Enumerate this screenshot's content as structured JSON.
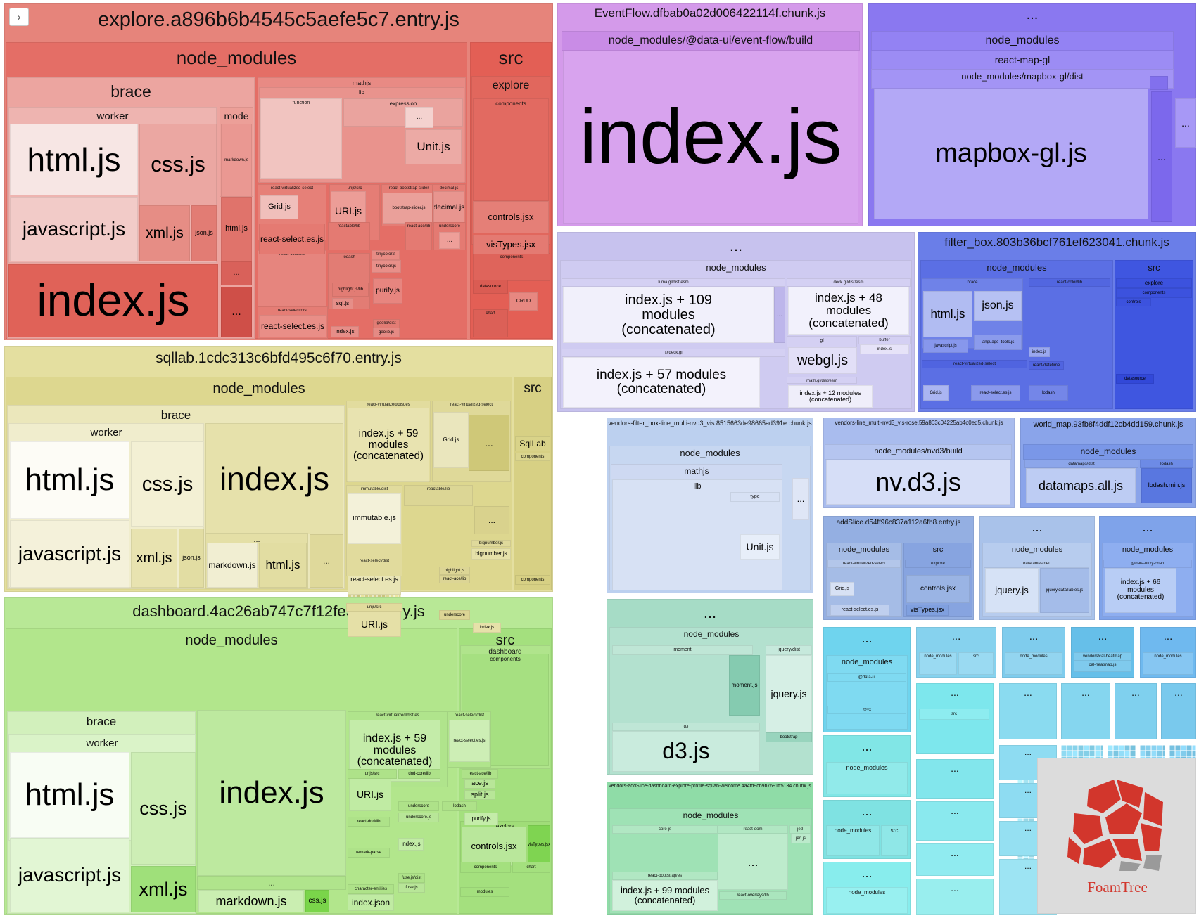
{
  "toggle": {
    "icon": "chevron-right-icon",
    "glyph": "›"
  },
  "colors": {
    "explore": "#e06e64",
    "sqllab": "#d6d17f",
    "dashboard": "#9fe07a",
    "eventflow": "#c98ce6",
    "mapbox": "#8b78f0",
    "luma": "#c7c2ee",
    "filter_box": "#3f56e0",
    "vendors_blue": "#a9c3ea",
    "nvd3": "#9db3ea",
    "world_map": "#7f9ee8",
    "d3_green": "#9ad7c0",
    "teal": "#86e6e0",
    "cyan": "#7fd6f0"
  },
  "groups": [
    {
      "id": "explore",
      "name": "explore.a896b6b4545c5aefe5c7.entry.js"
    },
    {
      "id": "explore-nm",
      "name": "node_modules"
    },
    {
      "id": "explore-brace",
      "name": "brace"
    },
    {
      "id": "explore-worker",
      "name": "worker"
    },
    {
      "id": "explore-html",
      "name": "html.js"
    },
    {
      "id": "explore-css",
      "name": "css.js"
    },
    {
      "id": "explore-javascript",
      "name": "javascript.js"
    },
    {
      "id": "explore-xml",
      "name": "xml.js"
    },
    {
      "id": "explore-json",
      "name": "json.js"
    },
    {
      "id": "explore-mode",
      "name": "mode"
    },
    {
      "id": "explore-markdown",
      "name": "markdown.js"
    },
    {
      "id": "explore-mode-html",
      "name": "html.js"
    },
    {
      "id": "explore-mode-dots1",
      "name": "..."
    },
    {
      "id": "explore-mode-dots2",
      "name": "..."
    },
    {
      "id": "explore-index",
      "name": "index.js"
    },
    {
      "id": "explore-mathjs",
      "name": "mathjs"
    },
    {
      "id": "explore-lib",
      "name": "lib"
    },
    {
      "id": "explore-function",
      "name": "function"
    },
    {
      "id": "explore-expression",
      "name": "expression"
    },
    {
      "id": "explore-dots3",
      "name": "..."
    },
    {
      "id": "explore-unit",
      "name": "Unit.js"
    },
    {
      "id": "explore-rvs",
      "name": "react-virtualized-select"
    },
    {
      "id": "explore-grid",
      "name": "Grid.js"
    },
    {
      "id": "explore-urijs",
      "name": "urijs/src"
    },
    {
      "id": "explore-uri",
      "name": "URI.js"
    },
    {
      "id": "explore-rbs",
      "name": "react-bootstrap-slider"
    },
    {
      "id": "explore-bss",
      "name": "bootstrap-slider.js"
    },
    {
      "id": "explore-decimaljs",
      "name": "decimal.js"
    },
    {
      "id": "explore-decimal",
      "name": "decimal.js"
    },
    {
      "id": "explore-rselect",
      "name": "react-select.es.js"
    },
    {
      "id": "explore-reactable",
      "name": "reactable/lib"
    },
    {
      "id": "explore-raceliib",
      "name": "react-ace/lib"
    },
    {
      "id": "explore-underscore",
      "name": "underscore"
    },
    {
      "id": "explore-dots4",
      "name": "..."
    },
    {
      "id": "explore-colorlib",
      "name": "react-color/lib"
    },
    {
      "id": "explore-lodash",
      "name": "lodash"
    },
    {
      "id": "explore-tinycolor2",
      "name": "tinycolor2"
    },
    {
      "id": "explore-tinycolor",
      "name": "tinycolor.js"
    },
    {
      "id": "explore-highlight",
      "name": "highlight.js/lib"
    },
    {
      "id": "explore-purify",
      "name": "purify.js"
    },
    {
      "id": "explore-sql",
      "name": "sql.js"
    },
    {
      "id": "explore-rsdist",
      "name": "react-select/dist"
    },
    {
      "id": "explore-rselect2",
      "name": "react-select.es.js"
    },
    {
      "id": "explore-geolib",
      "name": "geolib/dist"
    },
    {
      "id": "explore-geolibjs",
      "name": "geolib.js"
    },
    {
      "id": "explore-indexsmall",
      "name": "index.js"
    },
    {
      "id": "explore-src",
      "name": "src"
    },
    {
      "id": "explore-src-explore",
      "name": "explore"
    },
    {
      "id": "explore-components",
      "name": "components"
    },
    {
      "id": "explore-controls",
      "name": "controls.jsx"
    },
    {
      "id": "explore-vistypes",
      "name": "visTypes.jsx"
    },
    {
      "id": "explore-components2",
      "name": "components"
    },
    {
      "id": "explore-datasource",
      "name": "datasource"
    },
    {
      "id": "explore-crud",
      "name": "CRUD"
    },
    {
      "id": "explore-chart",
      "name": "chart"
    },
    {
      "id": "sqllab",
      "name": "sqllab.1cdc313c6bfd495c6f70.entry.js"
    },
    {
      "id": "sqllab-nm",
      "name": "node_modules"
    },
    {
      "id": "sqllab-brace",
      "name": "brace"
    },
    {
      "id": "sqllab-worker",
      "name": "worker"
    },
    {
      "id": "sqllab-html",
      "name": "html.js"
    },
    {
      "id": "sqllab-css",
      "name": "css.js"
    },
    {
      "id": "sqllab-javascript",
      "name": "javascript.js"
    },
    {
      "id": "sqllab-xml",
      "name": "xml.js"
    },
    {
      "id": "sqllab-json",
      "name": "json.js"
    },
    {
      "id": "sqllab-index",
      "name": "index.js"
    },
    {
      "id": "sqllab-dots",
      "name": "..."
    },
    {
      "id": "sqllab-markdown",
      "name": "markdown.js"
    },
    {
      "id": "sqllab-html2",
      "name": "html.js"
    },
    {
      "id": "sqllab-dots2",
      "name": "..."
    },
    {
      "id": "sqllab-rvdist",
      "name": "react-virtualized/dist/es"
    },
    {
      "id": "sqllab-index59",
      "name": "index.js + 59\nmodules\n(concatenated)"
    },
    {
      "id": "sqllab-rvs",
      "name": "react-virtualized-select"
    },
    {
      "id": "sqllab-grid",
      "name": "Grid.js"
    },
    {
      "id": "sqllab-dots3",
      "name": "..."
    },
    {
      "id": "sqllab-immdist",
      "name": "immutable/dist"
    },
    {
      "id": "sqllab-immutable",
      "name": "immutable.js"
    },
    {
      "id": "sqllab-reactable",
      "name": "reactable/lib"
    },
    {
      "id": "sqllab-dots4",
      "name": "..."
    },
    {
      "id": "sqllab-rsdist",
      "name": "react-select/dist"
    },
    {
      "id": "sqllab-rselect",
      "name": "react-select.es.js"
    },
    {
      "id": "sqllab-bignumber",
      "name": "bignumber.js"
    },
    {
      "id": "sqllab-bignumberjs",
      "name": "bignumber.js"
    },
    {
      "id": "sqllab-highlight",
      "name": "highlight.js"
    },
    {
      "id": "sqllab-raceliib",
      "name": "react-ace/lib"
    },
    {
      "id": "sqllab-urijs",
      "name": "urijs/src"
    },
    {
      "id": "sqllab-uri",
      "name": "URI.js"
    },
    {
      "id": "sqllab-underscore",
      "name": "underscore"
    },
    {
      "id": "sqllab-indexs",
      "name": "index.js"
    },
    {
      "id": "sqllab-src",
      "name": "src"
    },
    {
      "id": "sqllab-sqllab",
      "name": "SqlLab"
    },
    {
      "id": "sqllab-components",
      "name": "components"
    },
    {
      "id": "sqllab-components2",
      "name": "components"
    },
    {
      "id": "dash",
      "name": "dashboard.4ac26ab747c7f12fe320.entry.js"
    },
    {
      "id": "dash-nm",
      "name": "node_modules"
    },
    {
      "id": "dash-brace",
      "name": "brace"
    },
    {
      "id": "dash-worker",
      "name": "worker"
    },
    {
      "id": "dash-html",
      "name": "html.js"
    },
    {
      "id": "dash-css",
      "name": "css.js"
    },
    {
      "id": "dash-javascript",
      "name": "javascript.js"
    },
    {
      "id": "dash-xml",
      "name": "xml.js"
    },
    {
      "id": "dash-index",
      "name": "index.js"
    },
    {
      "id": "dash-dots",
      "name": "..."
    },
    {
      "id": "dash-markdown",
      "name": "markdown.js"
    },
    {
      "id": "dash-cssjs",
      "name": "css.js"
    },
    {
      "id": "dash-rvdist",
      "name": "react-virtualized/dist/es"
    },
    {
      "id": "dash-index59",
      "name": "index.js + 59\nmodules\n(concatenated)"
    },
    {
      "id": "dash-rsdist",
      "name": "react-select/dist"
    },
    {
      "id": "dash-rselect",
      "name": "react-select.es.js"
    },
    {
      "id": "dash-urijs",
      "name": "urijs/src"
    },
    {
      "id": "dash-uri",
      "name": "URI.js"
    },
    {
      "id": "dash-dndcore",
      "name": "dnd-core/lib"
    },
    {
      "id": "dash-raceliib",
      "name": "react-ace/lib"
    },
    {
      "id": "dash-ace",
      "name": "ace.js"
    },
    {
      "id": "dash-split",
      "name": "split.js"
    },
    {
      "id": "dash-reactdnd",
      "name": "react-dnd/lib"
    },
    {
      "id": "dash-underscore",
      "name": "underscore"
    },
    {
      "id": "dash-underscorejs",
      "name": "underscore.js"
    },
    {
      "id": "dash-lodash",
      "name": "lodash"
    },
    {
      "id": "dash-indexs",
      "name": "index.js"
    },
    {
      "id": "dash-purify",
      "name": "purify.js"
    },
    {
      "id": "dash-remark",
      "name": "remark-parse"
    },
    {
      "id": "dash-fusejs",
      "name": "fuse.js/dist"
    },
    {
      "id": "dash-fuse",
      "name": "fuse.js"
    },
    {
      "id": "dash-charent",
      "name": "character-entities"
    },
    {
      "id": "dash-indexjson",
      "name": "index.json"
    },
    {
      "id": "dash-src",
      "name": "src"
    },
    {
      "id": "dash-dashboard",
      "name": "dashboard"
    },
    {
      "id": "dash-components",
      "name": "components"
    },
    {
      "id": "dash-explore",
      "name": "explore"
    },
    {
      "id": "dash-controls",
      "name": "controls.jsx"
    },
    {
      "id": "dash-vistypes",
      "name": "visTypes.jsx"
    },
    {
      "id": "dash-components2",
      "name": "components"
    },
    {
      "id": "dash-chart",
      "name": "chart"
    },
    {
      "id": "dash-modules",
      "name": "modules"
    },
    {
      "id": "ef",
      "name": "EventFlow.dfbab0a02d006422114f.chunk.js"
    },
    {
      "id": "ef-path",
      "name": "node_modules/@data-ui/event-flow/build"
    },
    {
      "id": "ef-index",
      "name": "index.js"
    },
    {
      "id": "mb",
      "name": "..."
    },
    {
      "id": "mb-nm",
      "name": "node_modules"
    },
    {
      "id": "mb-rmgl",
      "name": "react-map-gl"
    },
    {
      "id": "mb-path",
      "name": "node_modules/mapbox-gl/dist"
    },
    {
      "id": "mb-mapbox",
      "name": "mapbox-gl.js"
    },
    {
      "id": "mb-dots1",
      "name": "..."
    },
    {
      "id": "mb-dots2",
      "name": "..."
    },
    {
      "id": "mb-dots3",
      "name": "..."
    },
    {
      "id": "luma",
      "name": "..."
    },
    {
      "id": "luma-nm",
      "name": "node_modules"
    },
    {
      "id": "luma-lumadist",
      "name": "luma.gl/dist/esm"
    },
    {
      "id": "luma-index109",
      "name": "index.js + 109\nmodules\n(concatenated)"
    },
    {
      "id": "luma-dots",
      "name": "..."
    },
    {
      "id": "luma-deckdist",
      "name": "deck.gl/dist/esm"
    },
    {
      "id": "luma-index48",
      "name": "index.js + 48\nmodules\n(concatenated)"
    },
    {
      "id": "luma-atdeck",
      "name": "@deck.gl"
    },
    {
      "id": "luma-index57",
      "name": "index.js + 57 modules\n(concatenated)"
    },
    {
      "id": "luma-gl",
      "name": "gl"
    },
    {
      "id": "luma-webgl",
      "name": "webgl.js"
    },
    {
      "id": "luma-buffer",
      "name": "buffer"
    },
    {
      "id": "luma-bufindex",
      "name": "index.js"
    },
    {
      "id": "luma-mathgl",
      "name": "math.gl/dist/esm"
    },
    {
      "id": "luma-index12",
      "name": "index.js + 12 modules\n(concatenated)"
    },
    {
      "id": "fb",
      "name": "filter_box.803b36bcf761ef623041.chunk.js"
    },
    {
      "id": "fb-nm",
      "name": "node_modules"
    },
    {
      "id": "fb-brace",
      "name": "brace"
    },
    {
      "id": "fb-html",
      "name": "html.js"
    },
    {
      "id": "fb-json",
      "name": "json.js"
    },
    {
      "id": "fb-langtools",
      "name": "language_tools.js"
    },
    {
      "id": "fb-javascript",
      "name": "javascript.js"
    },
    {
      "id": "fb-colorlib",
      "name": "react-color/lib"
    },
    {
      "id": "fb-index",
      "name": "index.js"
    },
    {
      "id": "fb-rvs",
      "name": "react-virtualized-select"
    },
    {
      "id": "fb-grid",
      "name": "Grid.js"
    },
    {
      "id": "fb-rselect",
      "name": "react-select.es.js"
    },
    {
      "id": "fb-datetime",
      "name": "react-datetime"
    },
    {
      "id": "fb-lodash",
      "name": "lodash"
    },
    {
      "id": "fb-src",
      "name": "src"
    },
    {
      "id": "fb-explore",
      "name": "explore"
    },
    {
      "id": "fb-components",
      "name": "components"
    },
    {
      "id": "fb-controls",
      "name": "controls"
    },
    {
      "id": "fb-datasource",
      "name": "datasource"
    },
    {
      "id": "vfb",
      "name": "vendors-filter_box-line_multi-nvd3_vis.8515663de98665ad391e.chunk.js"
    },
    {
      "id": "vfb-nm",
      "name": "node_modules"
    },
    {
      "id": "vfb-mathjs",
      "name": "mathjs"
    },
    {
      "id": "vfb-lib",
      "name": "lib"
    },
    {
      "id": "vfb-type",
      "name": "type"
    },
    {
      "id": "vfb-unit",
      "name": "Unit.js"
    },
    {
      "id": "vfb-dots",
      "name": "..."
    },
    {
      "id": "vlm",
      "name": "vendors-line_multi-nvd3_vis-rose.59a863c04225ab4c0ed5.chunk.js"
    },
    {
      "id": "vlm-path",
      "name": "node_modules/nvd3/build"
    },
    {
      "id": "vlm-nvd3",
      "name": "nv.d3.js"
    },
    {
      "id": "wm",
      "name": "world_map.93fb8f4ddf12cb4dd159.chunk.js"
    },
    {
      "id": "wm-nm",
      "name": "node_modules"
    },
    {
      "id": "wm-datamapsdist",
      "name": "datamaps/dist"
    },
    {
      "id": "wm-datamaps",
      "name": "datamaps.all.js"
    },
    {
      "id": "wm-lodashd",
      "name": "lodash"
    },
    {
      "id": "wm-lodash",
      "name": "lodash.min.js"
    },
    {
      "id": "d3",
      "name": "..."
    },
    {
      "id": "d3-nm",
      "name": "node_modules"
    },
    {
      "id": "d3-moment",
      "name": "moment"
    },
    {
      "id": "d3-momentjs",
      "name": "moment.js"
    },
    {
      "id": "d3-jqdist",
      "name": "jquery/dist"
    },
    {
      "id": "d3-jquery",
      "name": "jquery.js"
    },
    {
      "id": "d3-d3",
      "name": "d3"
    },
    {
      "id": "d3-d3js",
      "name": "d3.js"
    },
    {
      "id": "d3-bootstrap",
      "name": "bootstrap"
    },
    {
      "id": "vas",
      "name": "vendors-addSlice-dashboard-explore-profile-sqllab-welcome.4a4fd9cb9b7691ff5134.chunk.js"
    },
    {
      "id": "vas-nm",
      "name": "node_modules"
    },
    {
      "id": "vas-corejs",
      "name": "core-js"
    },
    {
      "id": "vas-reactdom",
      "name": "react-dom"
    },
    {
      "id": "vas-jed",
      "name": "jed"
    },
    {
      "id": "vas-jedjs",
      "name": "jed.js"
    },
    {
      "id": "vas-dots",
      "name": "..."
    },
    {
      "id": "vas-rbs",
      "name": "react-bootstrap/es"
    },
    {
      "id": "vas-index99",
      "name": "index.js + 99 modules\n(concatenated)"
    },
    {
      "id": "vas-overlays",
      "name": "react-overlays/lib"
    },
    {
      "id": "as",
      "name": "addSlice.d54ff96c837a112a6fb8.entry.js"
    },
    {
      "id": "as-nm",
      "name": "node_modules"
    },
    {
      "id": "as-rvs",
      "name": "react-virtualized-select"
    },
    {
      "id": "as-grid",
      "name": "Grid.js"
    },
    {
      "id": "as-rselect",
      "name": "react-select.es.js"
    },
    {
      "id": "as-src",
      "name": "src"
    },
    {
      "id": "as-explore",
      "name": "explore"
    },
    {
      "id": "as-controls",
      "name": "controls.jsx"
    },
    {
      "id": "as-vistypes",
      "name": "visTypes.jsx"
    },
    {
      "id": "dt",
      "name": "..."
    },
    {
      "id": "dt-nm",
      "name": "node_modules"
    },
    {
      "id": "dt-datatables",
      "name": "datatables.net"
    },
    {
      "id": "dt-jquery",
      "name": "jquery.js"
    },
    {
      "id": "dt-jqdt",
      "name": "jquery.dataTables.js"
    },
    {
      "id": "ux",
      "name": "..."
    },
    {
      "id": "ux-nm",
      "name": "node_modules"
    },
    {
      "id": "ux-uxchart",
      "name": "@data-ui/xy-chart"
    },
    {
      "id": "ux-index66",
      "name": "index.js + 66\nmodules\n(concatenated)"
    },
    {
      "id": "t1",
      "name": "..."
    },
    {
      "id": "t1-nm",
      "name": "node_modules"
    },
    {
      "id": "t1-dataui",
      "name": "@data-ui"
    },
    {
      "id": "t1-vx",
      "name": "@vx"
    },
    {
      "id": "t2",
      "name": "..."
    },
    {
      "id": "t2-nm",
      "name": "node_modules"
    },
    {
      "id": "t3",
      "name": "..."
    },
    {
      "id": "t3-nm",
      "name": "node_modules"
    },
    {
      "id": "t3-src",
      "name": "src"
    },
    {
      "id": "t4",
      "name": "..."
    },
    {
      "id": "t4-nm",
      "name": "node_modules"
    },
    {
      "id": "c1",
      "name": "..."
    },
    {
      "id": "c1-nm",
      "name": "node_modules"
    },
    {
      "id": "c1-src",
      "name": "src"
    },
    {
      "id": "c2",
      "name": "..."
    },
    {
      "id": "c2-nm",
      "name": "node_modules"
    },
    {
      "id": "c3",
      "name": "..."
    },
    {
      "id": "c3-vch",
      "name": "vendors/cal-heatmap"
    },
    {
      "id": "c3-ch",
      "name": "cal-heatmap.js"
    },
    {
      "id": "c4",
      "name": "..."
    },
    {
      "id": "c4-nm",
      "name": "node_modules"
    },
    {
      "id": "s1",
      "name": "..."
    },
    {
      "id": "s1-src",
      "name": "src"
    },
    {
      "id": "s2",
      "name": "..."
    },
    {
      "id": "s3",
      "name": "..."
    },
    {
      "id": "s4",
      "name": "..."
    },
    {
      "id": "s5",
      "name": "..."
    },
    {
      "id": "s6",
      "name": "..."
    },
    {
      "id": "s7",
      "name": "..."
    },
    {
      "id": "s8",
      "name": "..."
    },
    {
      "id": "s9",
      "name": "..."
    },
    {
      "id": "s10",
      "name": "..."
    },
    {
      "id": "s11",
      "name": "..."
    },
    {
      "id": "s12",
      "name": "..."
    },
    {
      "id": "s13",
      "name": "..."
    }
  ],
  "logo": {
    "text": "FoamTree",
    "icon": "foamtree-logo-icon",
    "color": "#d2362c"
  }
}
